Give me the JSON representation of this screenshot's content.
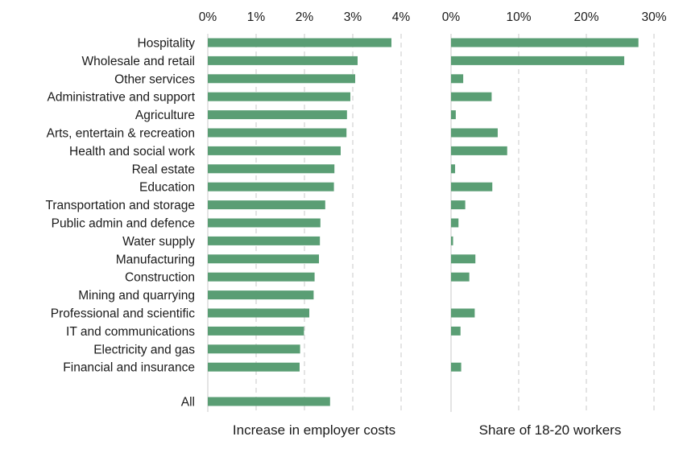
{
  "chart_data": [
    {
      "type": "bar",
      "orientation": "horizontal",
      "title": "",
      "xlabel": "Increase in employer costs",
      "ylabel": "",
      "xlim": [
        0,
        4
      ],
      "xticks": [
        "0%",
        "1%",
        "2%",
        "3%",
        "4%"
      ],
      "tick_position": "top",
      "grid": true,
      "bar_color": "#5a9e74",
      "categories": [
        "Hospitality",
        "Wholesale and retail",
        "Other services",
        "Administrative and support",
        "Agriculture",
        "Arts, entertain & recreation",
        "Health and social work",
        "Real estate",
        "Education",
        "Transportation and storage",
        "Public admin and defence",
        "Water supply",
        "Manufacturing",
        "Construction",
        "Mining and quarrying",
        "Professional and scientific",
        "IT and communications",
        "Electricity and gas",
        "Financial and insurance",
        "All"
      ],
      "values": [
        3.8,
        3.1,
        3.05,
        2.95,
        2.88,
        2.87,
        2.75,
        2.62,
        2.61,
        2.43,
        2.33,
        2.32,
        2.3,
        2.21,
        2.19,
        2.1,
        1.99,
        1.91,
        1.9,
        2.53
      ]
    },
    {
      "type": "bar",
      "orientation": "horizontal",
      "title": "",
      "xlabel": "Share of 18-20 workers",
      "ylabel": "",
      "xlim": [
        0,
        30
      ],
      "xticks": [
        "0%",
        "10%",
        "20%",
        "30%"
      ],
      "tick_position": "top",
      "grid": true,
      "bar_color": "#5a9e74",
      "categories": [
        "Hospitality",
        "Wholesale and retail",
        "Other services",
        "Administrative and support",
        "Agriculture",
        "Arts, entertain & recreation",
        "Health and social work",
        "Real estate",
        "Education",
        "Transportation and storage",
        "Public admin and defence",
        "Water supply",
        "Manufacturing",
        "Construction",
        "Mining and quarrying",
        "Professional and scientific",
        "IT and communications",
        "Electricity and gas",
        "Financial and insurance"
      ],
      "values": [
        27.7,
        25.6,
        1.8,
        6.0,
        0.7,
        6.9,
        8.3,
        0.6,
        6.1,
        2.1,
        1.1,
        0.3,
        3.6,
        2.7,
        0,
        3.5,
        1.4,
        0,
        1.5
      ]
    }
  ]
}
